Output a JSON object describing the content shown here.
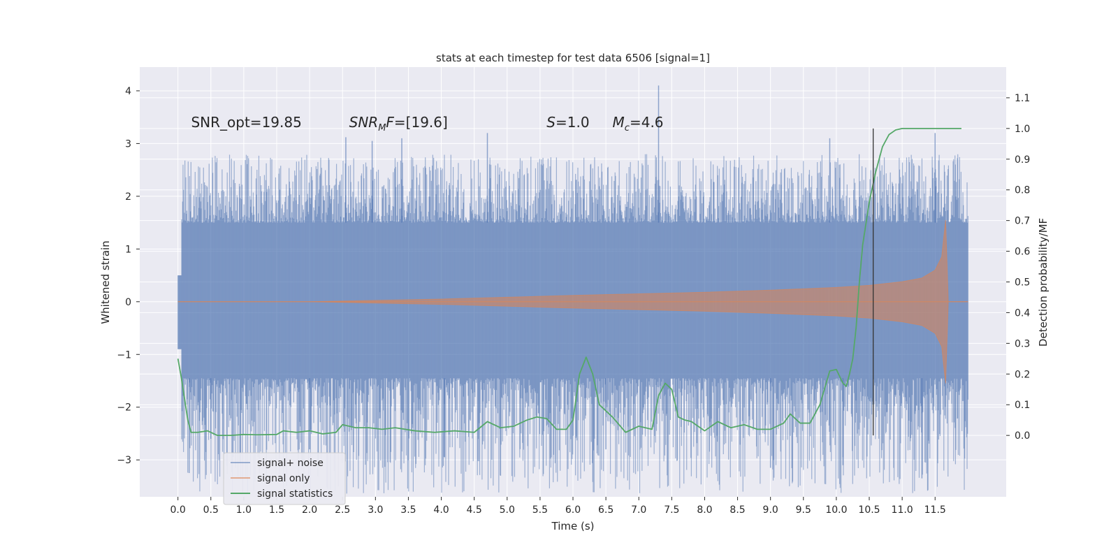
{
  "chart_data": {
    "type": "line",
    "title": "stats at each timestep for test data 6506 [signal=1]",
    "xlabel": "Time (s)",
    "ylabel_left": "Whitened strain",
    "ylabel_right": "Detection probability/MF",
    "xlim": [
      -0.58,
      12.58
    ],
    "ylim_left": [
      -3.7,
      4.45
    ],
    "ylim_right": [
      -0.2,
      1.2
    ],
    "xticks": [
      "0.0",
      "0.5",
      "1.0",
      "1.5",
      "2.0",
      "2.5",
      "3.0",
      "3.5",
      "4.0",
      "4.5",
      "5.0",
      "5.5",
      "6.0",
      "6.5",
      "7.0",
      "7.5",
      "8.0",
      "8.5",
      "9.0",
      "9.5",
      "10.0",
      "10.5",
      "11.0",
      "11.5"
    ],
    "xtick_values": [
      0,
      0.5,
      1,
      1.5,
      2,
      2.5,
      3,
      3.5,
      4,
      4.5,
      5,
      5.5,
      6,
      6.5,
      7,
      7.5,
      8,
      8.5,
      9,
      9.5,
      10,
      10.5,
      11,
      11.5
    ],
    "yticks_left": [
      "−3",
      "−2",
      "−1",
      "0",
      "1",
      "2",
      "3",
      "4"
    ],
    "ytick_values_left": [
      -3,
      -2,
      -1,
      0,
      1,
      2,
      3,
      4
    ],
    "yticks_right": [
      "0.0",
      "0.1",
      "0.2",
      "0.3",
      "0.4",
      "0.5",
      "0.6",
      "0.7",
      "0.8",
      "0.9",
      "1.0",
      "1.1"
    ],
    "ytick_values_right": [
      0,
      0.1,
      0.2,
      0.3,
      0.4,
      0.5,
      0.6,
      0.7,
      0.8,
      0.9,
      1.0,
      1.1
    ],
    "grid": true,
    "legend_position": "lower-left",
    "annotations": [
      {
        "text": "SNR_opt=19.85",
        "x": 0.2
      },
      {
        "text_main": "SNR",
        "text_sub": "M",
        "text_rest": "F=[19.6]",
        "x": 2.6
      },
      {
        "text_italic": "S",
        "text_rest": "=1.0",
        "x": 5.6
      },
      {
        "text_main": "M",
        "text_sub": "c",
        "text_rest": "=4.6",
        "x": 6.6
      }
    ],
    "annotation_y_right": 1.0,
    "vline": {
      "x": 10.56,
      "y_range_right": [
        0.0,
        1.0
      ]
    },
    "series": [
      {
        "name": "signal+ noise",
        "color": "#4c72b0",
        "x_range": [
          0,
          12.0
        ],
        "band": {
          "inner_low": -1.45,
          "inner_high": 1.5,
          "typical_peak": 2.4
        },
        "notable_peaks": [
          {
            "x": 0.17,
            "y": -3.25
          },
          {
            "x": 2.55,
            "y": 3.12
          },
          {
            "x": 2.95,
            "y": 3.05
          },
          {
            "x": 3.4,
            "y": 3.1
          },
          {
            "x": 4.7,
            "y": 3.2
          },
          {
            "x": 4.05,
            "y": -2.95
          },
          {
            "x": 7.3,
            "y": 4.1
          },
          {
            "x": 9.0,
            "y": -3.15
          },
          {
            "x": 9.9,
            "y": 3.1
          },
          {
            "x": 10.1,
            "y": -3.1
          },
          {
            "x": 11.3,
            "y": -3.35
          },
          {
            "x": 11.5,
            "y": 3.2
          },
          {
            "x": 0.5,
            "y": -2.6
          },
          {
            "x": 2.0,
            "y": -2.8
          },
          {
            "x": 6.5,
            "y": -2.8
          }
        ]
      },
      {
        "name": "signal only",
        "color": "#dd8452",
        "envelope_x": [
          0.0,
          2.0,
          4.0,
          6.0,
          8.0,
          9.0,
          10.0,
          10.5,
          11.0,
          11.3,
          11.5,
          11.6,
          11.66,
          11.7,
          12.0
        ],
        "envelope_amp": [
          0.0,
          0.0,
          0.05,
          0.12,
          0.18,
          0.22,
          0.27,
          0.31,
          0.38,
          0.45,
          0.6,
          0.85,
          1.55,
          0.0,
          0.0
        ]
      },
      {
        "name": "signal statistics",
        "color": "#55a868",
        "axis": "right",
        "x": [
          0.0,
          0.05,
          0.1,
          0.15,
          0.2,
          0.3,
          0.45,
          0.6,
          0.8,
          1.0,
          1.2,
          1.5,
          1.6,
          1.8,
          2.0,
          2.2,
          2.4,
          2.5,
          2.7,
          2.9,
          3.1,
          3.3,
          3.6,
          3.9,
          4.2,
          4.5,
          4.7,
          4.9,
          5.1,
          5.3,
          5.45,
          5.6,
          5.75,
          5.9,
          6.0,
          6.1,
          6.2,
          6.3,
          6.4,
          6.6,
          6.8,
          7.0,
          7.2,
          7.3,
          7.4,
          7.5,
          7.6,
          7.7,
          7.8,
          7.9,
          8.0,
          8.2,
          8.4,
          8.6,
          8.8,
          9.0,
          9.2,
          9.3,
          9.45,
          9.6,
          9.75,
          9.9,
          10.0,
          10.1,
          10.15,
          10.2,
          10.25,
          10.3,
          10.35,
          10.4,
          10.5,
          10.6,
          10.7,
          10.8,
          10.9,
          11.0,
          11.2,
          11.5,
          11.6,
          11.9
        ],
        "y": [
          0.25,
          0.19,
          0.12,
          0.05,
          0.01,
          0.01,
          0.015,
          0.0,
          0.0,
          0.003,
          0.002,
          0.003,
          0.015,
          0.01,
          0.015,
          0.005,
          0.01,
          0.035,
          0.025,
          0.025,
          0.02,
          0.025,
          0.015,
          0.01,
          0.015,
          0.01,
          0.045,
          0.025,
          0.03,
          0.05,
          0.06,
          0.055,
          0.02,
          0.02,
          0.05,
          0.2,
          0.255,
          0.2,
          0.1,
          0.06,
          0.01,
          0.03,
          0.02,
          0.13,
          0.17,
          0.15,
          0.06,
          0.05,
          0.045,
          0.03,
          0.015,
          0.045,
          0.025,
          0.035,
          0.02,
          0.02,
          0.04,
          0.07,
          0.04,
          0.04,
          0.1,
          0.21,
          0.215,
          0.17,
          0.16,
          0.2,
          0.25,
          0.35,
          0.5,
          0.62,
          0.76,
          0.86,
          0.94,
          0.98,
          0.995,
          1.0,
          1.0,
          1.0,
          1.0,
          1.0
        ]
      }
    ]
  }
}
